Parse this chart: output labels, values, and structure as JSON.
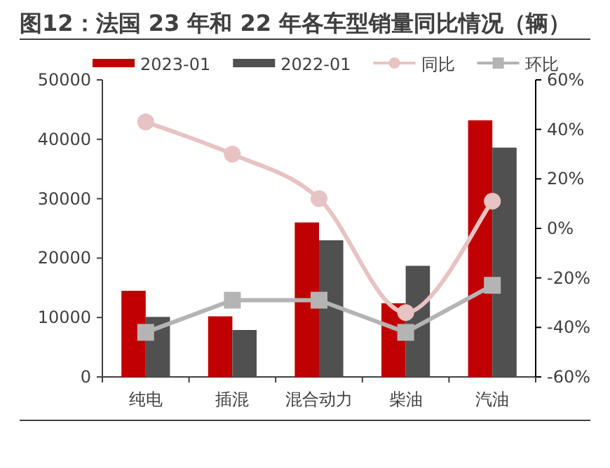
{
  "chart_data": {
    "type": "bar",
    "title": "图12：法国 23 年和 22 年各车型销量同比情况（辆）",
    "categories": [
      "纯电",
      "插混",
      "混合动力",
      "柴油",
      "汽油"
    ],
    "series": [
      {
        "name": "2023-01",
        "color": "#c00000",
        "values": [
          14500,
          10200,
          26000,
          12400,
          43200
        ]
      },
      {
        "name": "2022-01",
        "color": "#505050",
        "values": [
          10100,
          7900,
          23000,
          18700,
          38600
        ]
      },
      {
        "name": "同比",
        "type": "line",
        "axis": "y2",
        "marker": "circle",
        "color": "#e8c3c3",
        "values": [
          43,
          30,
          12,
          -34,
          11
        ]
      },
      {
        "name": "环比",
        "type": "line",
        "axis": "y2",
        "marker": "square",
        "color": "#b4b4b4",
        "values": [
          -42,
          -29,
          -29,
          -42,
          -23
        ]
      }
    ],
    "ylim": [
      0,
      50000
    ],
    "yticks": [
      0,
      10000,
      20000,
      30000,
      40000,
      50000
    ],
    "y2lim": [
      -60,
      60
    ],
    "y2ticks": [
      {
        "value": -60,
        "label": "-60%"
      },
      {
        "value": -40,
        "label": "-40%"
      },
      {
        "value": -20,
        "label": "-20%"
      },
      {
        "value": 0,
        "label": "0%"
      },
      {
        "value": 20,
        "label": "20%"
      },
      {
        "value": 40,
        "label": "40%"
      },
      {
        "value": 60,
        "label": "60%"
      }
    ],
    "legend": "top"
  }
}
